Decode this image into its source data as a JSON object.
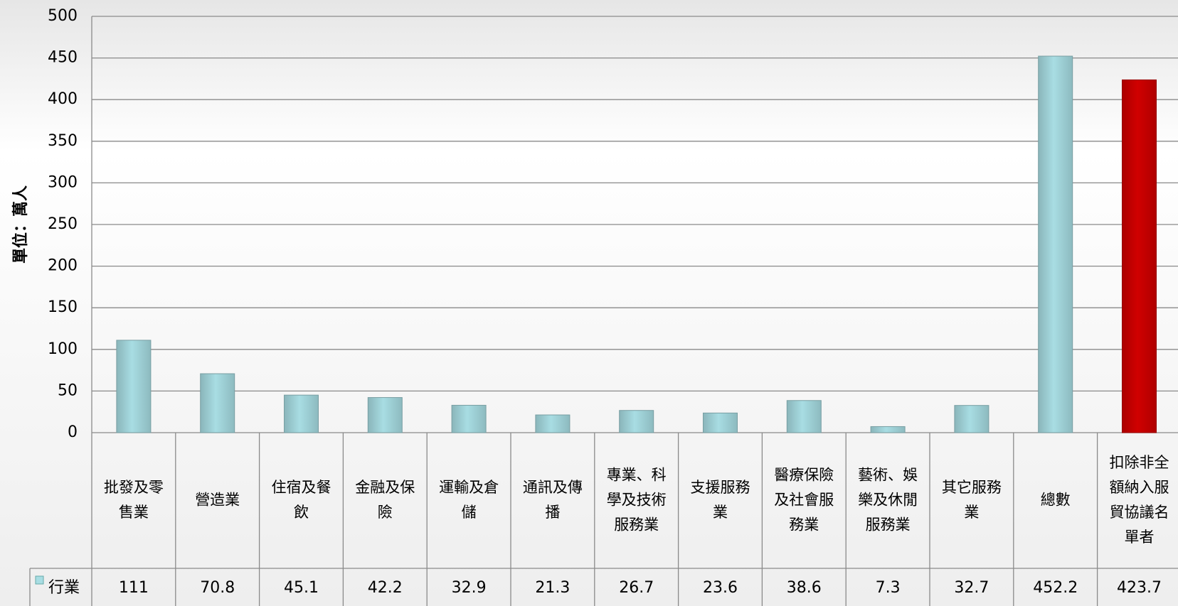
{
  "chart_data": {
    "type": "bar",
    "y_label": "單位：萬人",
    "categories": [
      "批發及零售業",
      "營造業",
      "住宿及餐飲",
      "金融及保險",
      "運輸及倉儲",
      "通訊及傳播",
      "專業、科學及技術服務業",
      "支援服務業",
      "醫療保險及社會服務業",
      "藝術、娛樂及休閒服務業",
      "其它服務業",
      "總數",
      "扣除非全額納入服貿協議名單者"
    ],
    "series": [
      {
        "name": "行業",
        "color": "#a8dde3",
        "values": [
          111,
          70.8,
          45.1,
          42.2,
          32.9,
          21.3,
          26.7,
          23.6,
          38.6,
          7.3,
          32.7,
          452.2,
          423.7
        ],
        "colors": [
          "#a8dde3",
          "#a8dde3",
          "#a8dde3",
          "#a8dde3",
          "#a8dde3",
          "#a8dde3",
          "#a8dde3",
          "#a8dde3",
          "#a8dde3",
          "#a8dde3",
          "#a8dde3",
          "#a8dde3",
          "#d00000"
        ]
      }
    ],
    "ylim": [
      0,
      500
    ],
    "yticks": [
      0,
      50,
      100,
      150,
      200,
      250,
      300,
      350,
      400,
      450,
      500
    ],
    "grid": true
  }
}
